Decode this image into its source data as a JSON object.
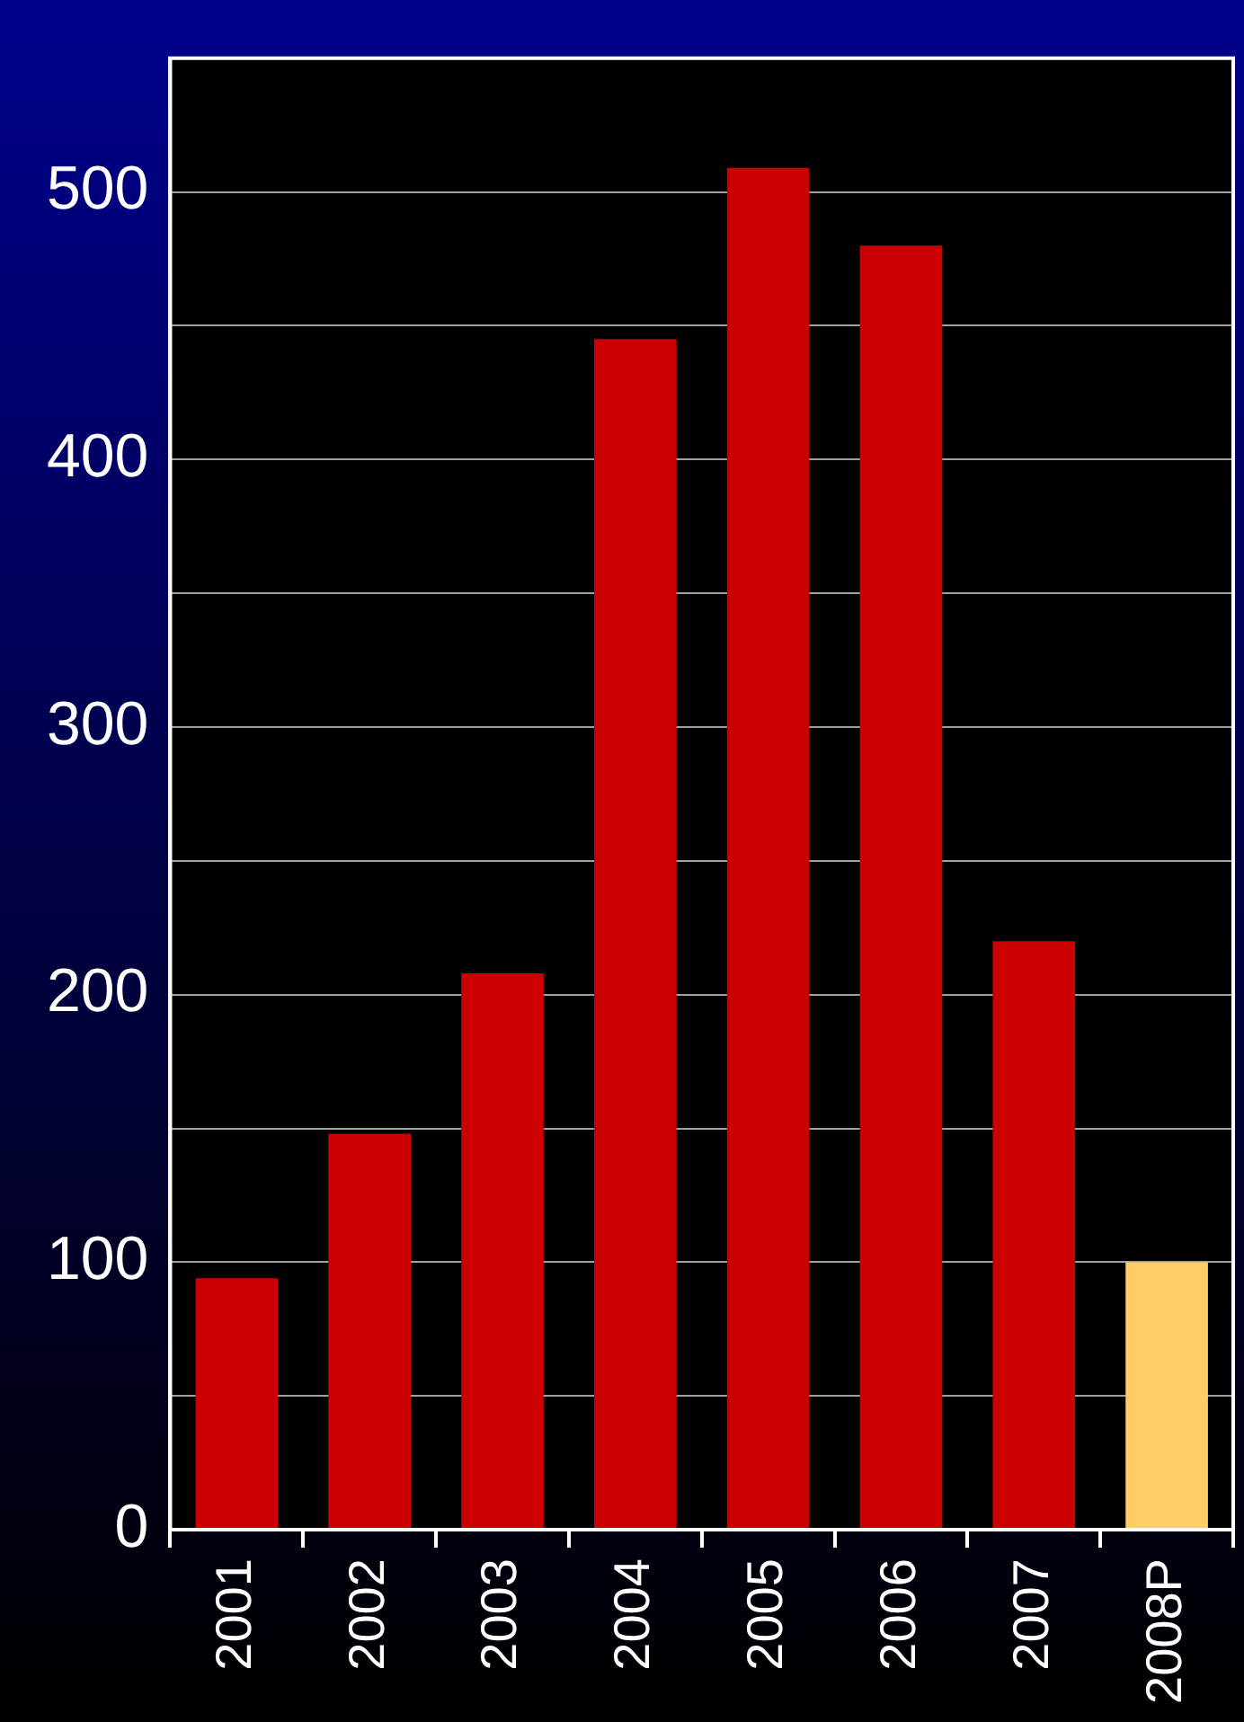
{
  "chart_data": {
    "type": "bar",
    "categories": [
      "2001",
      "2002",
      "2003",
      "2004",
      "2005",
      "2006",
      "2007",
      "2008P"
    ],
    "values": [
      94,
      148,
      208,
      445,
      509,
      480,
      220,
      100
    ],
    "colors": [
      "#cc0000",
      "#cc0000",
      "#cc0000",
      "#cc0000",
      "#cc0000",
      "#cc0000",
      "#cc0000",
      "#ffcc66"
    ],
    "ylim": [
      0,
      550
    ],
    "yticks": [
      0,
      {
        "value": 50,
        "label": null
      },
      100,
      {
        "value": 150,
        "label": null
      },
      200,
      {
        "value": 250,
        "label": null
      },
      300,
      {
        "value": 350,
        "label": null
      },
      400,
      {
        "value": 450,
        "label": null
      },
      500,
      {
        "value": 550,
        "label": null
      }
    ],
    "grid": "y",
    "legend": false
  }
}
